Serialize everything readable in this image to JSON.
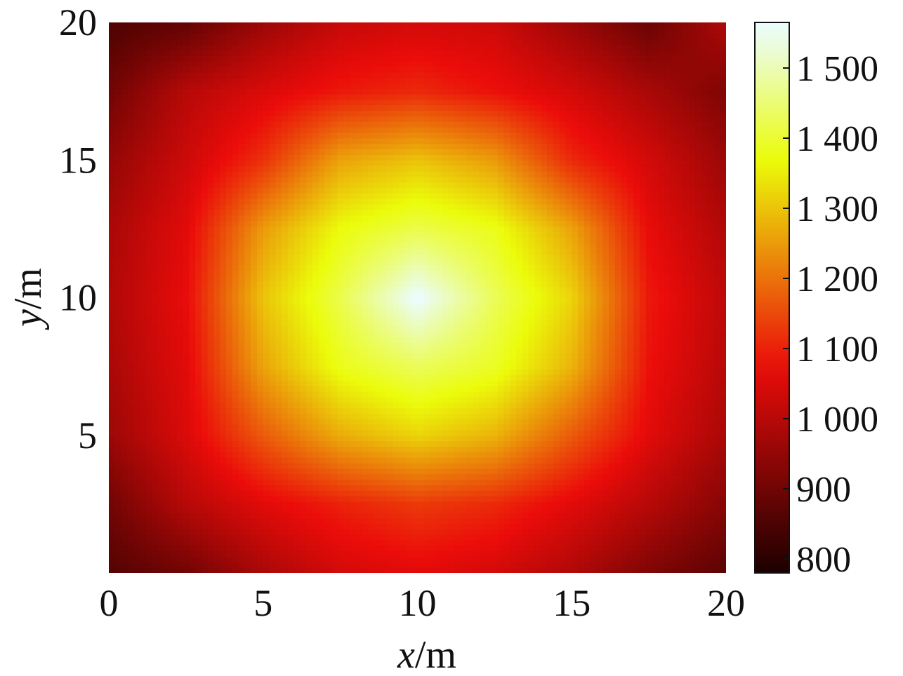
{
  "chart_data": {
    "type": "heatmap",
    "title": "",
    "xlabel": "x/m",
    "ylabel": "y/m",
    "xlabel_var": "x",
    "xlabel_unit": "/m",
    "ylabel_var": "y",
    "ylabel_unit": "/m",
    "xlim": [
      0,
      20
    ],
    "ylim": [
      0,
      20
    ],
    "x_ticks": [
      0,
      5,
      10,
      15,
      20
    ],
    "x_tick_labels": [
      "0",
      "5",
      "10",
      "15",
      "20"
    ],
    "y_ticks": [
      5,
      10,
      15,
      20
    ],
    "y_tick_labels": [
      "5",
      "10",
      "15",
      "20"
    ],
    "colorbar": {
      "range": [
        780,
        1565
      ],
      "ticks": [
        800,
        900,
        1000,
        1100,
        1200,
        1300,
        1400,
        1500
      ],
      "tick_labels": [
        "800",
        "900",
        "1 000",
        "1 100",
        "1 200",
        "1 300",
        "1 400",
        "1 500"
      ],
      "colormap": "hot"
    },
    "x": [
      0,
      2.5,
      5,
      7.5,
      10,
      12.5,
      15,
      17.5,
      20
    ],
    "y": [
      0,
      2.5,
      5,
      7.5,
      10,
      12.5,
      15,
      17.5,
      20
    ],
    "z": [
      [
        860,
        900,
        980,
        1040,
        1060,
        1040,
        990,
        920,
        870
      ],
      [
        900,
        1000,
        1060,
        1100,
        1130,
        1110,
        1060,
        1000,
        930
      ],
      [
        960,
        1050,
        1170,
        1270,
        1320,
        1280,
        1170,
        1060,
        980
      ],
      [
        980,
        1060,
        1260,
        1380,
        1430,
        1390,
        1280,
        1080,
        1000
      ],
      [
        990,
        1070,
        1300,
        1420,
        1565,
        1430,
        1320,
        1090,
        1010
      ],
      [
        980,
        1060,
        1250,
        1370,
        1420,
        1380,
        1260,
        1070,
        990
      ],
      [
        950,
        1030,
        1120,
        1260,
        1300,
        1250,
        1110,
        1040,
        960
      ],
      [
        900,
        1000,
        1050,
        1090,
        1110,
        1080,
        1040,
        980,
        920
      ],
      [
        850,
        880,
        960,
        1020,
        1040,
        1030,
        960,
        890,
        990
      ]
    ],
    "grid": false,
    "legend": "colorbar-right"
  }
}
